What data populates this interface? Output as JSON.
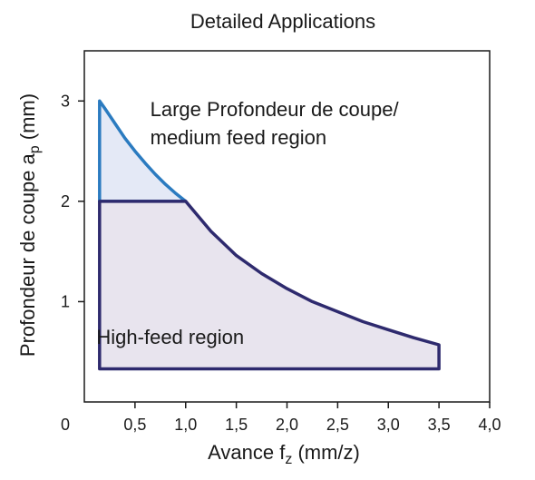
{
  "chart_data": {
    "type": "area",
    "title": "Detailed Applications",
    "xlabel": "Avance f",
    "xlabel_sub": "z",
    "xlabel_unit": " (mm/z)",
    "ylabel": "Profondeur de coupe a",
    "ylabel_sub": "p",
    "ylabel_unit": " (mm)",
    "xlim": [
      0,
      4.0
    ],
    "ylim": [
      0,
      3.5
    ],
    "x_ticks": [
      {
        "value": 0.5,
        "label": "0,5"
      },
      {
        "value": 1.0,
        "label": "1,0"
      },
      {
        "value": 1.5,
        "label": "1,5"
      },
      {
        "value": 2.0,
        "label": "2,0"
      },
      {
        "value": 2.5,
        "label": "2,5"
      },
      {
        "value": 3.0,
        "label": "3,0"
      },
      {
        "value": 3.5,
        "label": "3,5"
      },
      {
        "value": 4.0,
        "label": "4,0"
      }
    ],
    "origin_label": "0",
    "y_ticks": [
      {
        "value": 1,
        "label": "1"
      },
      {
        "value": 2,
        "label": "2"
      },
      {
        "value": 3,
        "label": "3"
      }
    ],
    "grid": false,
    "regions": [
      {
        "label_lines": [
          "Large Profondeur de coupe/",
          "medium feed region"
        ],
        "fill": "#e4e9f6",
        "stroke": "#2b7bc0",
        "points": [
          [
            0.15,
            2.0
          ],
          [
            0.15,
            3.0
          ],
          [
            0.2,
            2.93
          ],
          [
            0.3,
            2.78
          ],
          [
            0.4,
            2.63
          ],
          [
            0.5,
            2.5
          ],
          [
            0.6,
            2.38
          ],
          [
            0.7,
            2.27
          ],
          [
            0.8,
            2.17
          ],
          [
            0.9,
            2.08
          ],
          [
            1.0,
            2.0
          ]
        ]
      },
      {
        "label_lines": [
          "High-feed region"
        ],
        "fill": "#e8e4ee",
        "stroke": "#2e2a6e",
        "points": [
          [
            0.15,
            0.33
          ],
          [
            0.15,
            2.0
          ],
          [
            1.0,
            2.0
          ],
          [
            1.25,
            1.7
          ],
          [
            1.5,
            1.46
          ],
          [
            1.75,
            1.28
          ],
          [
            2.0,
            1.13
          ],
          [
            2.25,
            1.0
          ],
          [
            2.5,
            0.9
          ],
          [
            2.75,
            0.8
          ],
          [
            3.0,
            0.72
          ],
          [
            3.25,
            0.64
          ],
          [
            3.5,
            0.57
          ],
          [
            3.5,
            0.33
          ]
        ]
      }
    ]
  },
  "colors": {
    "axis": "#1a1a1a",
    "upper_fill": "#e4e9f6",
    "upper_stroke": "#2b7bc0",
    "lower_fill": "#e8e4ee",
    "lower_stroke": "#2e2a6e"
  }
}
